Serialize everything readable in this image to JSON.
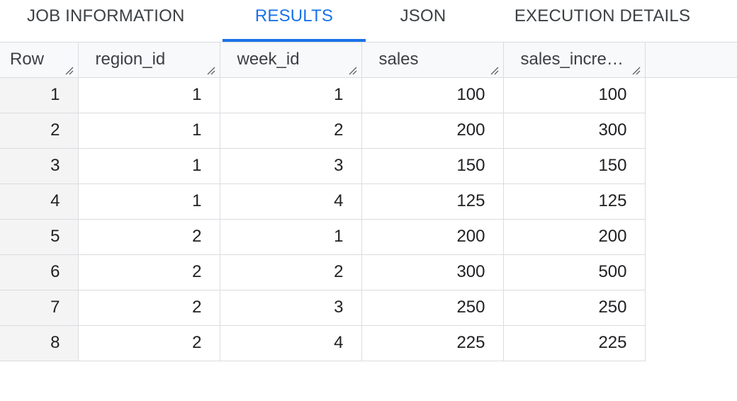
{
  "tabs": [
    {
      "label": "JOB INFORMATION",
      "active": false
    },
    {
      "label": "RESULTS",
      "active": true
    },
    {
      "label": "JSON",
      "active": false
    },
    {
      "label": "EXECUTION DETAILS",
      "active": false
    }
  ],
  "colors": {
    "accent": "#1a73e8",
    "border": "#dadce0",
    "header_bg": "#f8f9fa",
    "row_num_bg": "#f4f4f4"
  },
  "table": {
    "columns": [
      "Row",
      "region_id",
      "week_id",
      "sales",
      "sales_increa…"
    ],
    "rows": [
      [
        "1",
        "1",
        "1",
        "100",
        "100"
      ],
      [
        "2",
        "1",
        "2",
        "200",
        "300"
      ],
      [
        "3",
        "1",
        "3",
        "150",
        "150"
      ],
      [
        "4",
        "1",
        "4",
        "125",
        "125"
      ],
      [
        "5",
        "2",
        "1",
        "200",
        "200"
      ],
      [
        "6",
        "2",
        "2",
        "300",
        "500"
      ],
      [
        "7",
        "2",
        "3",
        "250",
        "250"
      ],
      [
        "8",
        "2",
        "4",
        "225",
        "225"
      ]
    ]
  }
}
